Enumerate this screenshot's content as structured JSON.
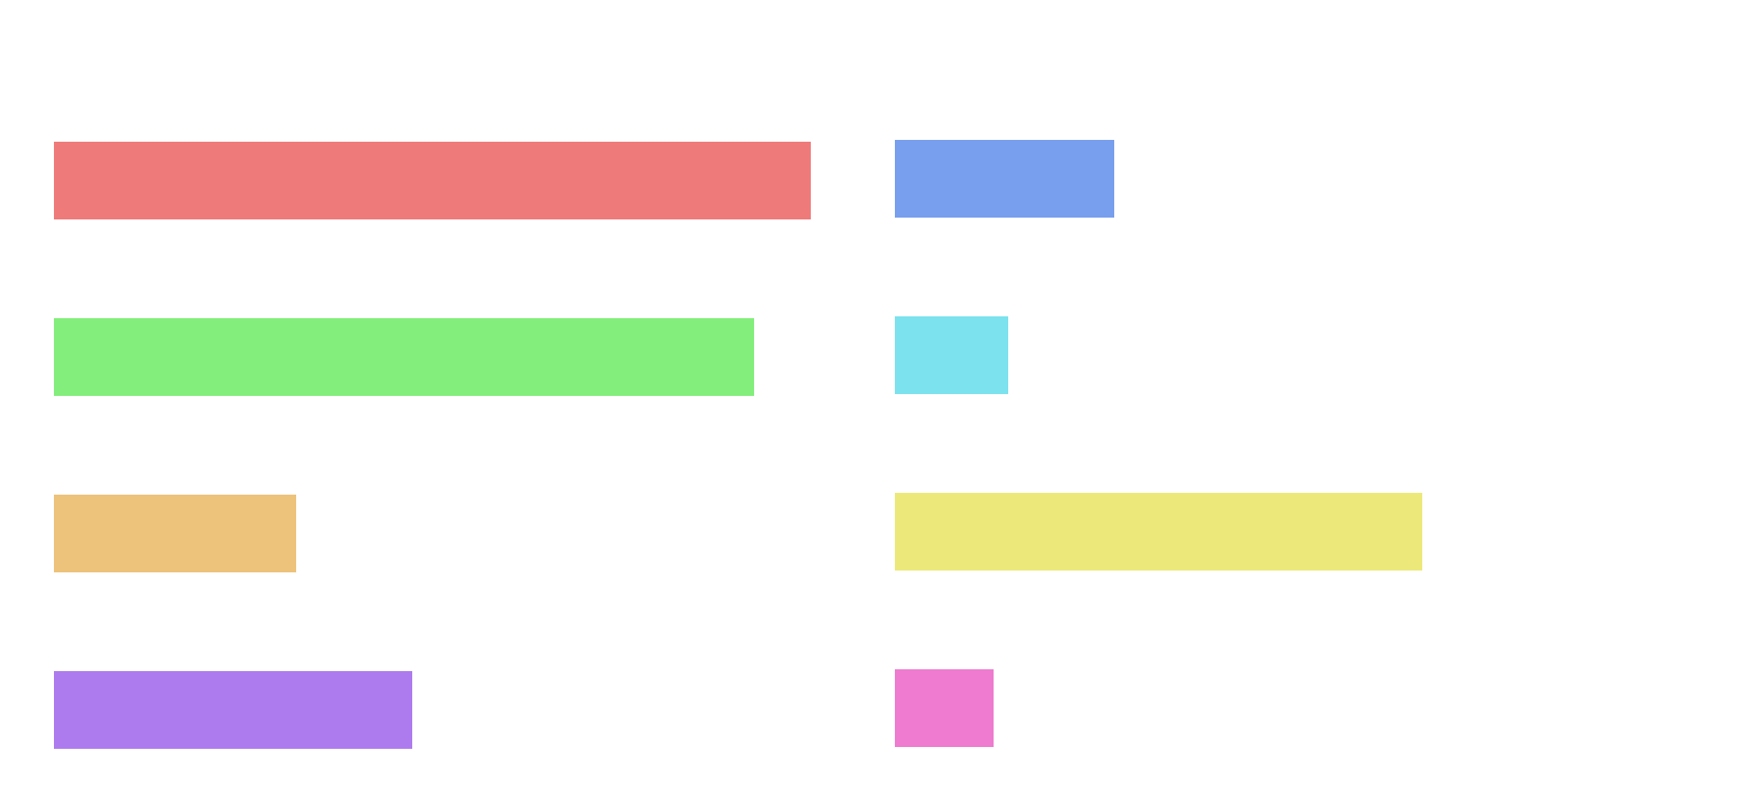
{
  "chart_data": {
    "type": "bar",
    "orientation": "horizontal",
    "title": "",
    "xlabel": "",
    "ylabel": "",
    "grid": false,
    "legend": "none",
    "panels": [
      {
        "bars": [
          {
            "value": 1.0,
            "color": "#ef7a7a"
          },
          {
            "value": 0.925,
            "color": "#83ee7b"
          },
          {
            "value": 0.32,
            "color": "#edc27a"
          },
          {
            "value": 0.473,
            "color": "#ad7bee"
          }
        ]
      },
      {
        "bars": [
          {
            "value": 0.29,
            "color": "#789eee"
          },
          {
            "value": 0.15,
            "color": "#7be2ee"
          },
          {
            "value": 0.697,
            "color": "#ece97a"
          },
          {
            "value": 0.13,
            "color": "#ee7bcf"
          }
        ]
      }
    ]
  }
}
